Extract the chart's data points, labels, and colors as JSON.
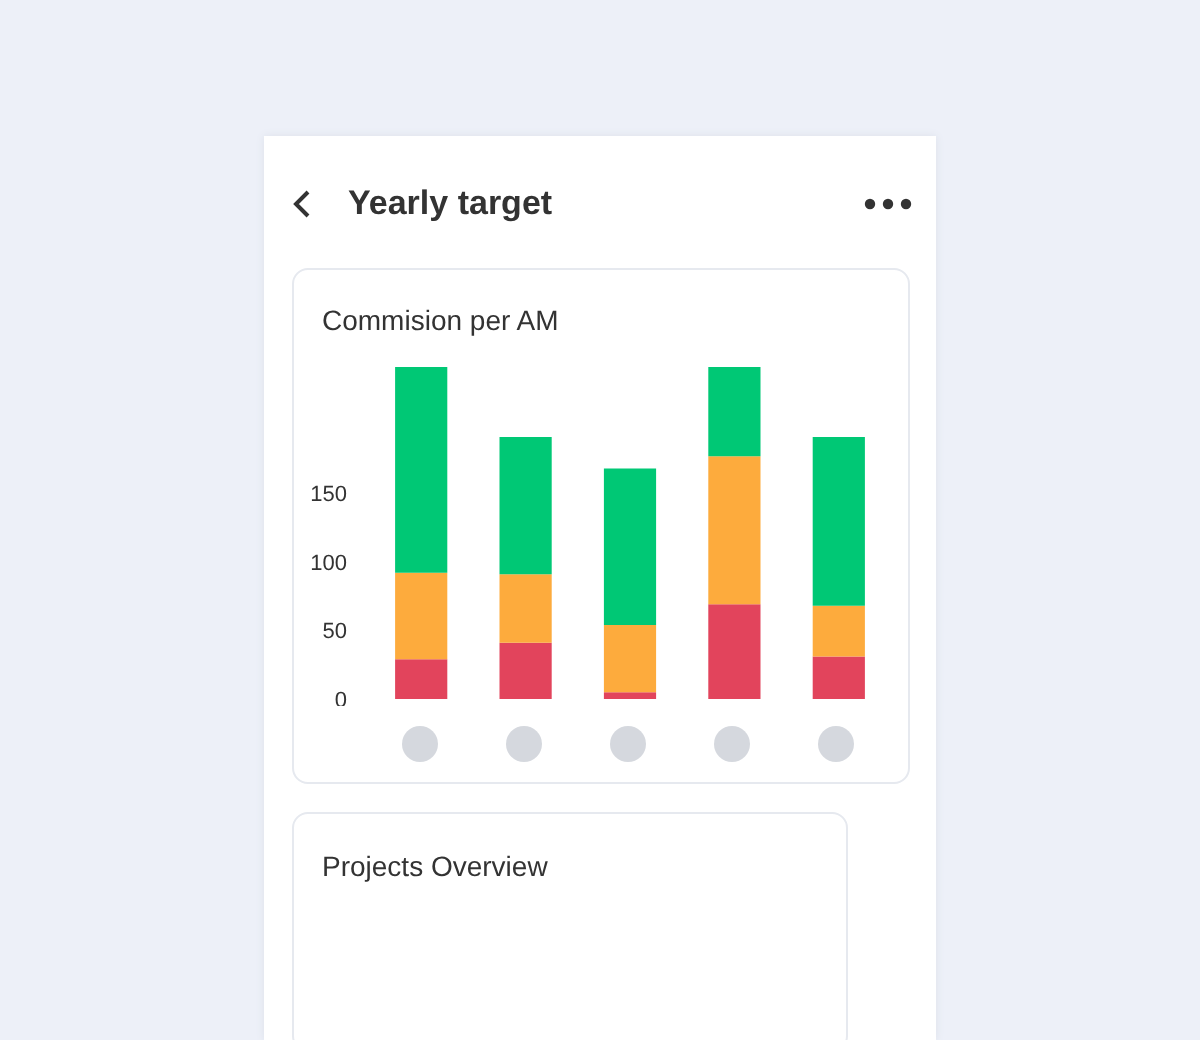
{
  "chart_data": [
    {
      "type": "other",
      "title": "Yearly target"
    },
    {
      "type": "bar",
      "title": "Commision per AM",
      "categories": [
        null,
        null,
        null,
        null,
        null
      ],
      "stacked": true,
      "series": [
        {
          "color": "#e2445c",
          "values": [
            29,
            41,
            5,
            69,
            31
          ]
        },
        {
          "color": "#fdab3d",
          "values": [
            63,
            50,
            49,
            108,
            37
          ]
        },
        {
          "color": "#00c875",
          "values": [
            150,
            100,
            114,
            65,
            123
          ]
        }
      ],
      "ylim": [
        0,
        245
      ],
      "yticks": [
        0,
        50,
        100,
        150
      ],
      "grid": false
    },
    {
      "type": "other",
      "title": "Projects Overview"
    }
  ]
}
